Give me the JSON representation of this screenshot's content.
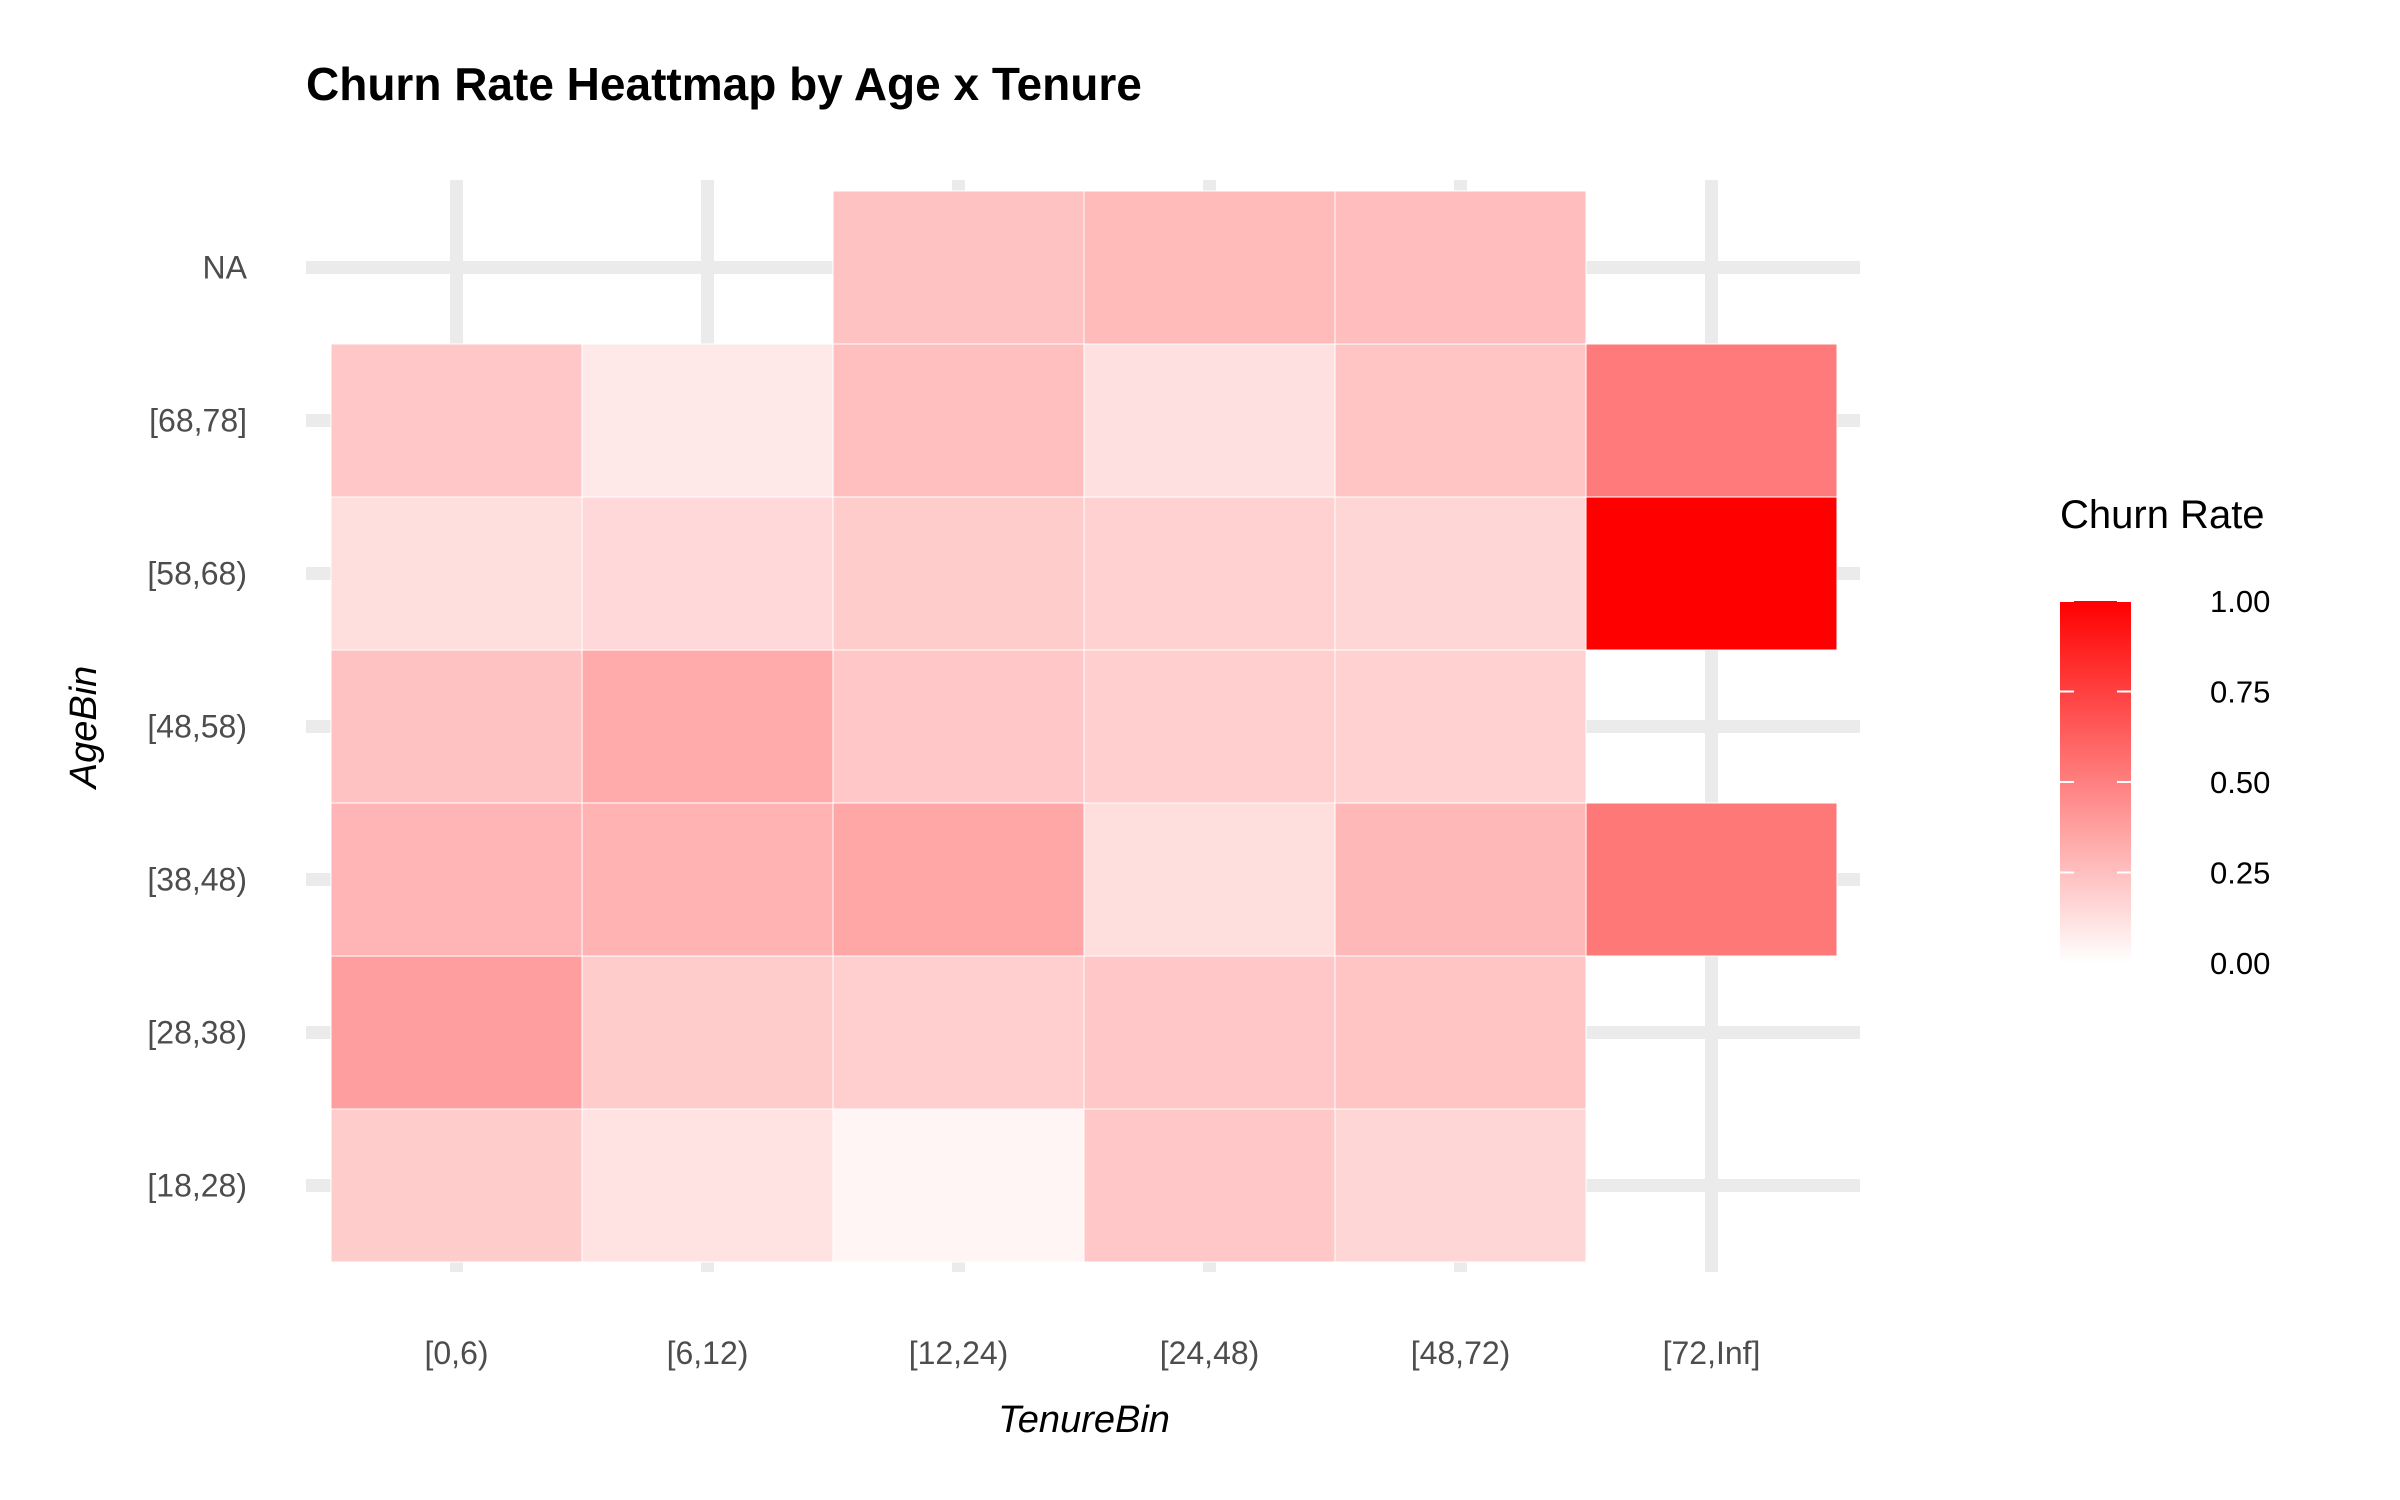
{
  "chart_data": {
    "type": "heatmap",
    "title": "Churn Rate Heattmap by Age x Tenure",
    "xlabel": "TenureBin",
    "ylabel": "AgeBin",
    "x_categories": [
      "[0,6)",
      "[6,12)",
      "[12,24)",
      "[24,48)",
      "[48,72)",
      "[72,Inf]"
    ],
    "y_categories": [
      "[18,28)",
      "[28,38)",
      "[38,48)",
      "[48,58)",
      "[58,68)",
      "[68,78]",
      "NA"
    ],
    "values": [
      [
        0.2,
        0.11,
        0.04,
        0.22,
        0.16,
        null
      ],
      [
        0.38,
        0.2,
        0.19,
        0.22,
        0.23,
        null
      ],
      [
        0.29,
        0.3,
        0.35,
        0.13,
        0.28,
        0.53
      ],
      [
        0.24,
        0.33,
        0.22,
        0.19,
        0.18,
        null
      ],
      [
        0.13,
        0.15,
        0.2,
        0.18,
        0.16,
        1.0
      ],
      [
        0.22,
        0.09,
        0.25,
        0.12,
        0.23,
        0.52
      ],
      [
        null,
        null,
        0.24,
        0.27,
        0.26,
        null
      ]
    ],
    "color_scale": {
      "low": "#ffffff",
      "high": "#ff0000",
      "limits": [
        0,
        1
      ]
    },
    "grid": true,
    "legend": {
      "title": "Churn Rate",
      "position": "right",
      "breaks": [
        0.0,
        0.25,
        0.5,
        0.75,
        1.0
      ],
      "labels": [
        "0.00",
        "0.25",
        "0.50",
        "0.75",
        "1.00"
      ]
    }
  }
}
